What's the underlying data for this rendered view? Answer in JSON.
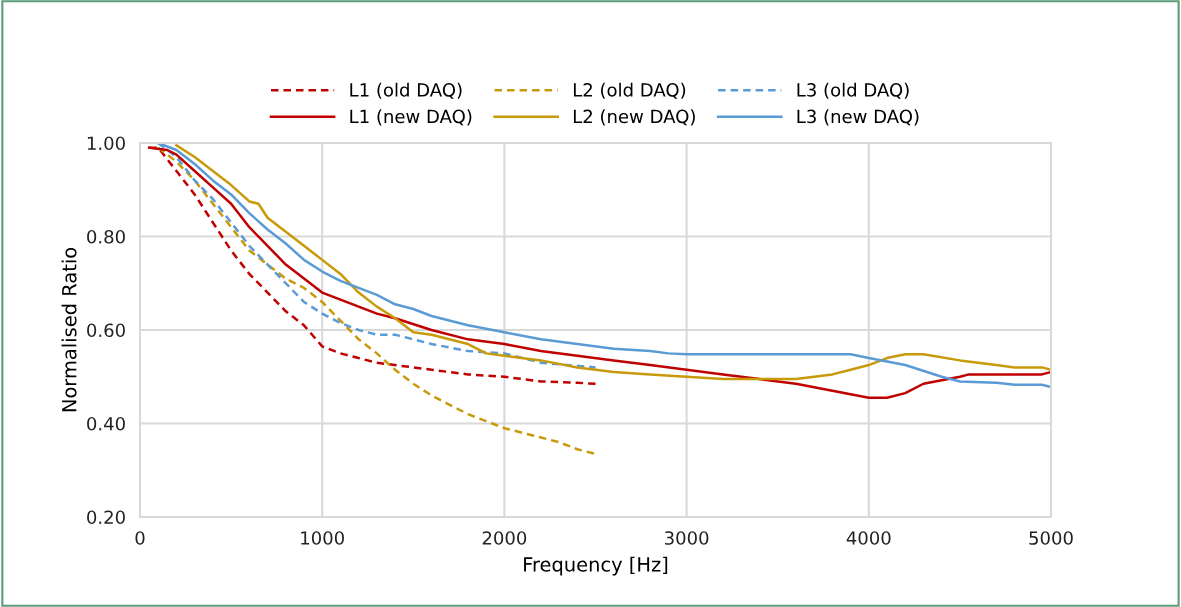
{
  "chart_data": {
    "type": "line",
    "xlabel": "Frequency [Hz]",
    "ylabel": "Normalised Ratio",
    "xlim": [
      0,
      5000
    ],
    "xticks": [
      0,
      1000,
      2000,
      3000,
      4000,
      5000
    ],
    "ylim": [
      0.2,
      1.0
    ],
    "yticks": [
      {
        "value": 0.2,
        "label": "0.20"
      },
      {
        "value": 0.4,
        "label": "0.40"
      },
      {
        "value": 0.6,
        "label": "0.60"
      },
      {
        "value": 0.8,
        "label": "0.80"
      },
      {
        "value": 1.0,
        "label": "1.00"
      }
    ],
    "grid": true,
    "legend": "top",
    "marker": "none",
    "series": [
      {
        "name": "L1 (old DAQ)",
        "color": "#c00000",
        "line_style": "dashed",
        "x": [
          50,
          100,
          200,
          300,
          400,
          500,
          600,
          700,
          800,
          900,
          1000,
          1100,
          1200,
          1300,
          1400,
          1600,
          1800,
          2000,
          2200,
          2400,
          2500
        ],
        "values": [
          0.99,
          0.99,
          0.94,
          0.89,
          0.83,
          0.77,
          0.72,
          0.68,
          0.64,
          0.61,
          0.565,
          0.55,
          0.54,
          0.53,
          0.525,
          0.515,
          0.505,
          0.5,
          0.49,
          0.487,
          0.485
        ]
      },
      {
        "name": "L2 (old DAQ)",
        "color": "#c89a0a",
        "line_style": "dashed",
        "x": [
          100,
          200,
          300,
          400,
          500,
          600,
          700,
          800,
          900,
          1000,
          1100,
          1200,
          1300,
          1400,
          1500,
          1600,
          1700,
          1800,
          1900,
          2000,
          2100,
          2200,
          2300,
          2400,
          2500
        ],
        "values": [
          0.99,
          0.96,
          0.92,
          0.87,
          0.82,
          0.77,
          0.74,
          0.71,
          0.69,
          0.66,
          0.62,
          0.58,
          0.55,
          0.515,
          0.485,
          0.46,
          0.44,
          0.42,
          0.405,
          0.39,
          0.38,
          0.37,
          0.36,
          0.345,
          0.335
        ]
      },
      {
        "name": "L3 (old DAQ)",
        "color": "#5b9bd5",
        "line_style": "dashed",
        "x": [
          100,
          200,
          300,
          400,
          500,
          600,
          700,
          800,
          900,
          1000,
          1100,
          1200,
          1300,
          1400,
          1600,
          1800,
          2000,
          2200,
          2500
        ],
        "values": [
          1.0,
          0.97,
          0.92,
          0.88,
          0.83,
          0.78,
          0.74,
          0.7,
          0.66,
          0.635,
          0.615,
          0.6,
          0.59,
          0.59,
          0.57,
          0.555,
          0.55,
          0.53,
          0.52
        ]
      },
      {
        "name": "L1 (new DAQ)",
        "color": "#c00000",
        "line_style": "solid",
        "x": [
          50,
          150,
          200,
          300,
          400,
          500,
          600,
          700,
          800,
          900,
          1000,
          1100,
          1200,
          1300,
          1400,
          1600,
          1800,
          2000,
          2200,
          2400,
          2600,
          2800,
          3000,
          3200,
          3400,
          3600,
          3800,
          4000,
          4100,
          4200,
          4300,
          4500,
          4550,
          4950,
          5000
        ],
        "values": [
          0.99,
          0.985,
          0.975,
          0.94,
          0.905,
          0.87,
          0.82,
          0.78,
          0.74,
          0.71,
          0.68,
          0.665,
          0.65,
          0.635,
          0.625,
          0.6,
          0.58,
          0.57,
          0.555,
          0.545,
          0.535,
          0.525,
          0.515,
          0.505,
          0.495,
          0.485,
          0.47,
          0.455,
          0.455,
          0.465,
          0.485,
          0.5,
          0.505,
          0.505,
          0.51
        ]
      },
      {
        "name": "L2 (new DAQ)",
        "color": "#c89a0a",
        "line_style": "solid",
        "x": [
          200,
          300,
          400,
          500,
          600,
          650,
          700,
          800,
          900,
          1000,
          1100,
          1200,
          1300,
          1400,
          1500,
          1600,
          1800,
          1900,
          2000,
          2200,
          2400,
          2600,
          2800,
          3000,
          3200,
          3600,
          3800,
          3900,
          4000,
          4100,
          4200,
          4300,
          4500,
          4700,
          4800,
          4950,
          5000
        ],
        "values": [
          0.995,
          0.97,
          0.94,
          0.91,
          0.875,
          0.87,
          0.84,
          0.81,
          0.78,
          0.75,
          0.72,
          0.68,
          0.65,
          0.625,
          0.595,
          0.59,
          0.57,
          0.55,
          0.545,
          0.535,
          0.52,
          0.51,
          0.505,
          0.5,
          0.495,
          0.495,
          0.505,
          0.515,
          0.525,
          0.54,
          0.548,
          0.548,
          0.535,
          0.525,
          0.52,
          0.52,
          0.515
        ]
      },
      {
        "name": "L3 (new DAQ)",
        "color": "#5b9bd5",
        "line_style": "solid",
        "x": [
          100,
          200,
          300,
          400,
          500,
          600,
          700,
          800,
          900,
          1000,
          1100,
          1200,
          1300,
          1400,
          1500,
          1600,
          1800,
          2000,
          2200,
          2400,
          2600,
          2800,
          2900,
          3000,
          3900,
          4000,
          4200,
          4400,
          4500,
          4700,
          4800,
          4950,
          5000
        ],
        "values": [
          1.0,
          0.985,
          0.955,
          0.92,
          0.89,
          0.85,
          0.815,
          0.785,
          0.75,
          0.725,
          0.705,
          0.69,
          0.675,
          0.655,
          0.645,
          0.63,
          0.61,
          0.595,
          0.58,
          0.57,
          0.56,
          0.555,
          0.55,
          0.548,
          0.548,
          0.54,
          0.525,
          0.5,
          0.49,
          0.487,
          0.483,
          0.483,
          0.478
        ]
      }
    ]
  }
}
